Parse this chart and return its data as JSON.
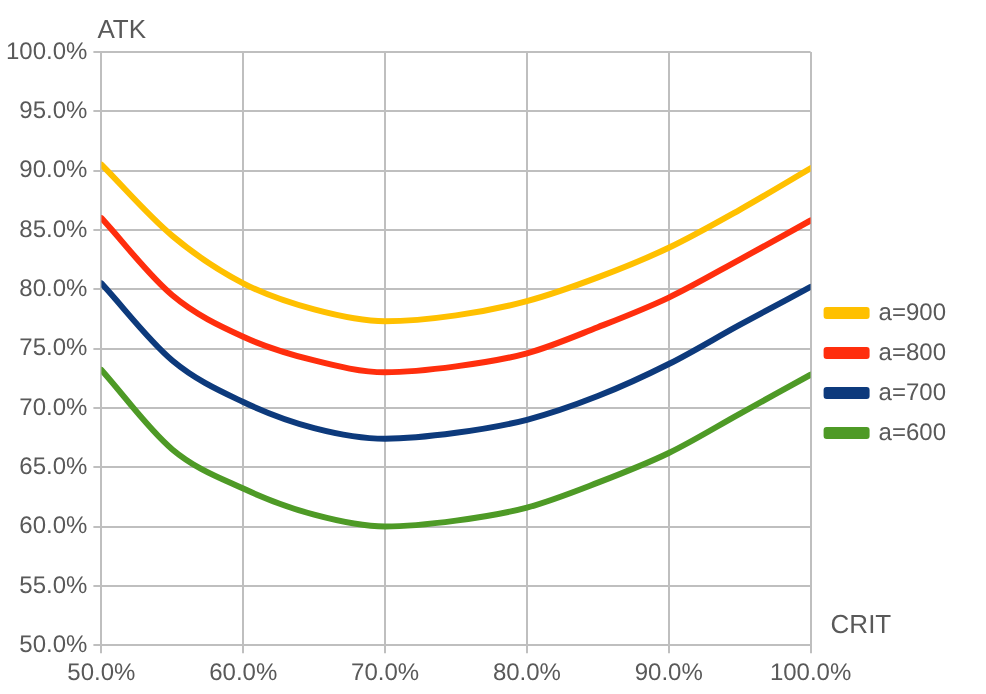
{
  "chart_data": {
    "type": "line",
    "xlabel": "CRIT",
    "ylabel": "ATK",
    "x": [
      50,
      55,
      60,
      65,
      70,
      75,
      80,
      85,
      90,
      95,
      100
    ],
    "series": [
      {
        "name": "a=900",
        "color": "#ffc000",
        "values": [
          90.5,
          84.5,
          80.5,
          78.3,
          77.3,
          77.8,
          79,
          81,
          83.5,
          86.7,
          90.2
        ]
      },
      {
        "name": "a=800",
        "color": "#ff2e0d",
        "values": [
          86,
          79.5,
          76,
          74,
          73,
          73.5,
          74.6,
          76.8,
          79.3,
          82.5,
          85.8
        ]
      },
      {
        "name": "a=700",
        "color": "#0d3a7c",
        "values": [
          80.5,
          74,
          70.5,
          68.3,
          67.4,
          67.9,
          69,
          71,
          73.7,
          77,
          80.2
        ]
      },
      {
        "name": "a=600",
        "color": "#4e9a26",
        "values": [
          73.2,
          66.5,
          63.2,
          61,
          60,
          60.5,
          61.6,
          63.7,
          66.2,
          69.5,
          72.8
        ]
      }
    ],
    "xlim": [
      50,
      100
    ],
    "xticks": [
      {
        "value": 50,
        "label": "50.0%"
      },
      {
        "value": 60,
        "label": "60.0%"
      },
      {
        "value": 70,
        "label": "70.0%"
      },
      {
        "value": 80,
        "label": "80.0%"
      },
      {
        "value": 90,
        "label": "90.0%"
      },
      {
        "value": 100,
        "label": "100.0%"
      }
    ],
    "ylim": [
      50,
      100
    ],
    "yticks": [
      {
        "value": 50,
        "label": "50.0%"
      },
      {
        "value": 55,
        "label": "55.0%"
      },
      {
        "value": 60,
        "label": "60.0%"
      },
      {
        "value": 65,
        "label": "65.0%"
      },
      {
        "value": 70,
        "label": "70.0%"
      },
      {
        "value": 75,
        "label": "75.0%"
      },
      {
        "value": 80,
        "label": "80.0%"
      },
      {
        "value": 85,
        "label": "85.0%"
      },
      {
        "value": 90,
        "label": "90.0%"
      },
      {
        "value": 95,
        "label": "95.0%"
      },
      {
        "value": 100,
        "label": "100.0%"
      }
    ],
    "grid": true,
    "legend": "right",
    "marker": "none",
    "line_style": "solid"
  }
}
